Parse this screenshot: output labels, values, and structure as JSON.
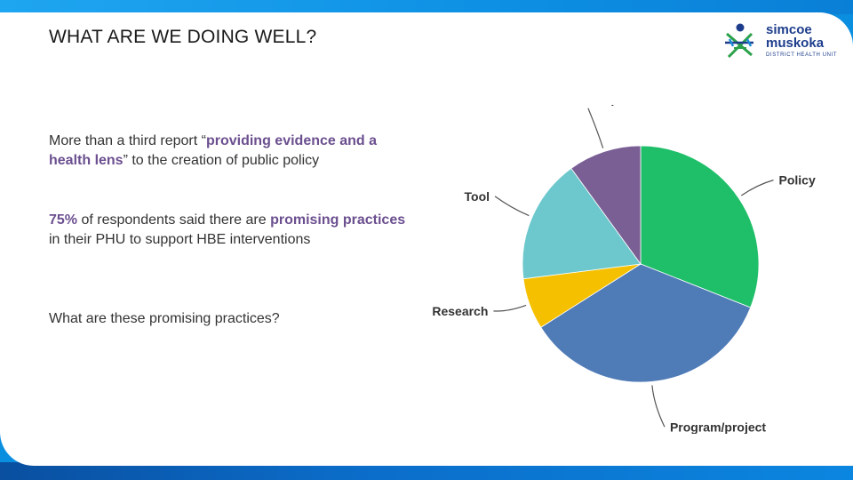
{
  "title": "WHAT ARE WE DOING WELL?",
  "logo": {
    "line1": "simcoe",
    "line2": "muskoka",
    "line3": "DISTRICT HEALTH UNIT"
  },
  "paragraphs": [
    {
      "parts": [
        {
          "text": "More than a third report “",
          "bold": false
        },
        {
          "text": "providing evidence and a health lens",
          "bold": true
        },
        {
          "text": "” to the creation of public policy",
          "bold": false
        }
      ]
    },
    {
      "parts": [
        {
          "text": "75%",
          "bold": true
        },
        {
          "text": " of respondents said there are ",
          "bold": false
        },
        {
          "text": "promising practices",
          "bold": true
        },
        {
          "text": " in their PHU to support HBE interventions",
          "bold": false
        }
      ]
    },
    {
      "parts": [
        {
          "text": "What are these promising practices?",
          "bold": false
        }
      ]
    }
  ],
  "colors": {
    "highlight": "#6b4f8f",
    "policy": "#1fbf6a",
    "program_project": "#4f7bb7",
    "research": "#f5c000",
    "tool": "#6cc8cc",
    "workshop": "#7a5f95"
  },
  "chart_data": {
    "type": "pie",
    "title": "",
    "start_angle_deg": 0,
    "direction": "clockwise",
    "legend": "none",
    "slices": [
      {
        "label": "Policy",
        "value": 31,
        "color": "#1fbf6a"
      },
      {
        "label": "Program/project",
        "value": 35,
        "color": "#4f7bb7"
      },
      {
        "label": "Research",
        "value": 7,
        "color": "#f5c000"
      },
      {
        "label": "Tool",
        "value": 17,
        "color": "#6cc8cc"
      },
      {
        "label": "Workshop",
        "value": 10,
        "color": "#7a5f95"
      }
    ]
  }
}
